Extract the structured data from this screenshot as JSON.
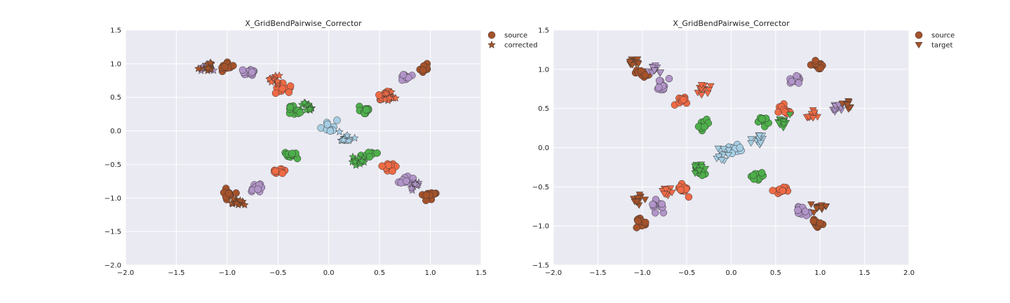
{
  "colors": {
    "background": "#eaeaf2",
    "grid": "#ffffff",
    "light_blue": "#a6cee3",
    "green": "#4daf4a",
    "orange": "#ef6a45",
    "lavender": "#b194c8",
    "brown": "#a4522a",
    "edge": "#333333"
  },
  "chart_data": [
    {
      "type": "scatter",
      "title": "X_GridBendPairwise_Corrector",
      "xlim": [
        -2.0,
        1.5
      ],
      "ylim": [
        -2.0,
        1.5
      ],
      "xticks": [
        "−2.0",
        "−1.5",
        "−1.0",
        "−0.5",
        "0.0",
        "0.5",
        "1.0",
        "1.5"
      ],
      "yticks": [
        "−2.0",
        "−1.5",
        "−1.0",
        "−0.5",
        "0.0",
        "0.5",
        "1.0",
        "1.5"
      ],
      "grid": true,
      "legend_placement": "outside-top-right",
      "series": [
        {
          "name": "source",
          "marker": "circle",
          "legend_color": "#a4522a"
        },
        {
          "name": "corrected",
          "marker": "star",
          "legend_color": "#a4522a"
        }
      ],
      "approx_points": [
        {
          "series": "source",
          "color": "light_blue",
          "x": 0.0,
          "y": 0.05
        },
        {
          "series": "source",
          "color": "green",
          "x": -0.35,
          "y": 0.3
        },
        {
          "series": "source",
          "color": "green",
          "x": 0.35,
          "y": 0.3
        },
        {
          "series": "source",
          "color": "green",
          "x": -0.35,
          "y": -0.35
        },
        {
          "series": "source",
          "color": "green",
          "x": 0.4,
          "y": -0.35
        },
        {
          "series": "source",
          "color": "orange",
          "x": -0.45,
          "y": 0.65
        },
        {
          "series": "source",
          "color": "orange",
          "x": 0.55,
          "y": 0.55
        },
        {
          "series": "source",
          "color": "orange",
          "x": -0.5,
          "y": -0.6
        },
        {
          "series": "source",
          "color": "orange",
          "x": 0.6,
          "y": -0.55
        },
        {
          "series": "source",
          "color": "lavender",
          "x": -0.8,
          "y": 0.85
        },
        {
          "series": "source",
          "color": "lavender",
          "x": 0.75,
          "y": 0.8
        },
        {
          "series": "source",
          "color": "lavender",
          "x": -0.7,
          "y": -0.85
        },
        {
          "series": "source",
          "color": "lavender",
          "x": 0.75,
          "y": -0.75
        },
        {
          "series": "source",
          "color": "brown",
          "x": -1.0,
          "y": 0.95
        },
        {
          "series": "source",
          "color": "brown",
          "x": 0.95,
          "y": 0.95
        },
        {
          "series": "source",
          "color": "brown",
          "x": -1.0,
          "y": -0.95
        },
        {
          "series": "source",
          "color": "brown",
          "x": 1.0,
          "y": -0.95
        },
        {
          "series": "corrected",
          "color": "light_blue",
          "x": 0.15,
          "y": -0.1
        },
        {
          "series": "corrected",
          "color": "green",
          "x": -0.2,
          "y": 0.35
        },
        {
          "series": "corrected",
          "color": "green",
          "x": 0.3,
          "y": -0.45
        },
        {
          "series": "corrected",
          "color": "orange",
          "x": -0.55,
          "y": 0.75
        },
        {
          "series": "corrected",
          "color": "orange",
          "x": 0.6,
          "y": 0.5
        },
        {
          "series": "corrected",
          "color": "lavender",
          "x": -1.2,
          "y": 0.95
        },
        {
          "series": "corrected",
          "color": "lavender",
          "x": 0.85,
          "y": -0.8
        },
        {
          "series": "corrected",
          "color": "brown",
          "x": -1.2,
          "y": 0.95
        },
        {
          "series": "corrected",
          "color": "brown",
          "x": -0.9,
          "y": -1.05
        }
      ]
    },
    {
      "type": "scatter",
      "title": "X_GridBendPairwise_Corrector",
      "xlim": [
        -2.0,
        2.0
      ],
      "ylim": [
        -1.5,
        1.5
      ],
      "xticks": [
        "−2.0",
        "−1.5",
        "−1.0",
        "−0.5",
        "0.0",
        "0.5",
        "1.0",
        "1.5",
        "2.0"
      ],
      "yticks": [
        "−1.5",
        "−1.0",
        "−0.5",
        "0.0",
        "0.5",
        "1.0",
        "1.5"
      ],
      "grid": true,
      "legend_placement": "outside-top-right",
      "series": [
        {
          "name": "source",
          "marker": "circle",
          "legend_color": "#a4522a"
        },
        {
          "name": "target",
          "marker": "triangle-down",
          "legend_color": "#a4522a"
        }
      ],
      "approx_points": [
        {
          "series": "source",
          "color": "light_blue",
          "x": 0.0,
          "y": 0.0
        },
        {
          "series": "source",
          "color": "green",
          "x": -0.3,
          "y": 0.3
        },
        {
          "series": "source",
          "color": "green",
          "x": 0.35,
          "y": 0.35
        },
        {
          "series": "source",
          "color": "green",
          "x": -0.35,
          "y": -0.3
        },
        {
          "series": "source",
          "color": "green",
          "x": 0.3,
          "y": -0.35
        },
        {
          "series": "source",
          "color": "orange",
          "x": -0.55,
          "y": 0.6
        },
        {
          "series": "source",
          "color": "orange",
          "x": 0.6,
          "y": 0.5
        },
        {
          "series": "source",
          "color": "orange",
          "x": -0.55,
          "y": -0.55
        },
        {
          "series": "source",
          "color": "orange",
          "x": 0.55,
          "y": -0.55
        },
        {
          "series": "source",
          "color": "lavender",
          "x": -0.8,
          "y": 0.8
        },
        {
          "series": "source",
          "color": "lavender",
          "x": 0.75,
          "y": 0.85
        },
        {
          "series": "source",
          "color": "lavender",
          "x": -0.8,
          "y": -0.75
        },
        {
          "series": "source",
          "color": "lavender",
          "x": 0.8,
          "y": -0.8
        },
        {
          "series": "source",
          "color": "brown",
          "x": -1.0,
          "y": 0.95
        },
        {
          "series": "source",
          "color": "brown",
          "x": 0.95,
          "y": 1.05
        },
        {
          "series": "source",
          "color": "brown",
          "x": -1.0,
          "y": -0.95
        },
        {
          "series": "source",
          "color": "brown",
          "x": 0.95,
          "y": -0.95
        },
        {
          "series": "target",
          "color": "light_blue",
          "x": -0.1,
          "y": -0.1
        },
        {
          "series": "target",
          "color": "light_blue",
          "x": 0.3,
          "y": 0.1
        },
        {
          "series": "target",
          "color": "green",
          "x": -0.35,
          "y": -0.25
        },
        {
          "series": "target",
          "color": "green",
          "x": 0.6,
          "y": 0.35
        },
        {
          "series": "target",
          "color": "orange",
          "x": -0.3,
          "y": 0.75
        },
        {
          "series": "target",
          "color": "orange",
          "x": 0.9,
          "y": 0.4
        },
        {
          "series": "target",
          "color": "orange",
          "x": -0.7,
          "y": -0.55
        },
        {
          "series": "target",
          "color": "lavender",
          "x": -0.85,
          "y": 1.0
        },
        {
          "series": "target",
          "color": "lavender",
          "x": 1.2,
          "y": 0.5
        },
        {
          "series": "target",
          "color": "brown",
          "x": -1.1,
          "y": 1.1
        },
        {
          "series": "target",
          "color": "brown",
          "x": 1.3,
          "y": 0.55
        },
        {
          "series": "target",
          "color": "brown",
          "x": -1.05,
          "y": -0.65
        },
        {
          "series": "target",
          "color": "brown",
          "x": 1.0,
          "y": -0.75
        }
      ]
    }
  ]
}
